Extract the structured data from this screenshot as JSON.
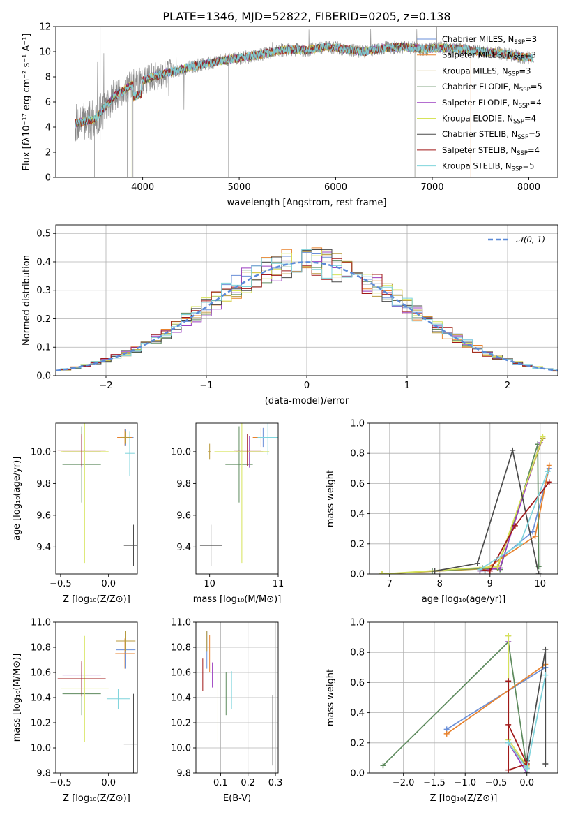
{
  "chart_data": [
    {
      "id": "spectrum",
      "type": "line",
      "title": "PLATE=1346, MJD=52822, FIBERID=0205, z=0.138",
      "xlabel": "wavelength [Angstrom, rest frame]",
      "ylabel": "Flux [fλ10⁻¹⁷ erg cm⁻² s⁻¹ A⁻¹]",
      "xlim": [
        3100,
        8300
      ],
      "ylim": [
        0,
        12
      ],
      "xticks": [
        4000,
        5000,
        6000,
        7000,
        8000
      ],
      "yticks": [
        0,
        2,
        4,
        6,
        8,
        10,
        12
      ],
      "grid": false,
      "legend_position": "top-right",
      "continuum": {
        "x": [
          3300,
          3500,
          3700,
          3900,
          4100,
          4300,
          4500,
          4700,
          4900,
          5100,
          5300,
          5500,
          5700,
          5900,
          6100,
          6300,
          6500,
          6700,
          6900,
          7100,
          7300,
          7500,
          7700,
          7900,
          8050
        ],
        "y": [
          4.3,
          4.6,
          6.4,
          7.4,
          8.0,
          8.4,
          8.8,
          9.1,
          9.4,
          9.6,
          9.9,
          10.2,
          10.1,
          10.4,
          10.2,
          10.0,
          10.3,
          10.4,
          10.2,
          10.3,
          10.2,
          10.0,
          9.9,
          9.6,
          9.5
        ]
      },
      "series": [
        {
          "name": "Chabrier MILES, Nₛₛₚ=3",
          "label_main": "Chabrier MILES, N",
          "label_sub": "SSP",
          "label_tail": "=3",
          "color": "#6a8fd8"
        },
        {
          "name": "Salpeter MILES, Nₛₛₚ=3",
          "label_main": "Salpeter MILES, N",
          "label_sub": "SSP",
          "label_tail": "=3",
          "color": "#e8822d"
        },
        {
          "name": "Kroupa MILES, Nₛₛₚ=3",
          "label_main": "Kroupa MILES, N",
          "label_sub": "SSP",
          "label_tail": "=3",
          "color": "#b89a3c"
        },
        {
          "name": "Chabrier ELODIE, Nₛₛₚ=5",
          "label_main": "Chabrier ELODIE, N",
          "label_sub": "SSP",
          "label_tail": "=5",
          "color": "#5d8a5d"
        },
        {
          "name": "Salpeter ELODIE, Nₛₛₚ=4",
          "label_main": "Salpeter ELODIE, N",
          "label_sub": "SSP",
          "label_tail": "=4",
          "color": "#9b3fc0"
        },
        {
          "name": "Kroupa ELODIE, Nₛₛₚ=4",
          "label_main": "Kroupa ELODIE, N",
          "label_sub": "SSP",
          "label_tail": "=4",
          "color": "#d6e35a"
        },
        {
          "name": "Chabrier STELIB, Nₛₛₚ=5",
          "label_main": "Chabrier STELIB, N",
          "label_sub": "SSP",
          "label_tail": "=5",
          "color": "#4a4a4a"
        },
        {
          "name": "Salpeter STELIB, Nₛₛₚ=4",
          "label_main": "Salpeter STELIB, N",
          "label_sub": "SSP",
          "label_tail": "=4",
          "color": "#a01818"
        },
        {
          "name": "Kroupa STELIB, Nₛₛₚ=5",
          "label_main": "Kroupa STELIB, N",
          "label_sub": "SSP",
          "label_tail": "=5",
          "color": "#7fd4dc"
        }
      ],
      "data_color": "#888888"
    },
    {
      "id": "residuals",
      "type": "area",
      "xlabel": "(data-model)/error",
      "ylabel": "Normed distribution",
      "xlim": [
        -2.5,
        2.5
      ],
      "ylim": [
        0,
        0.53
      ],
      "xticks": [
        -2,
        -1,
        0,
        1,
        2
      ],
      "yticks": [
        0.0,
        0.1,
        0.2,
        0.3,
        0.4,
        0.5
      ],
      "grid": true,
      "legend_position": "top-right",
      "reference_curve": {
        "name": "𝒩(0, 1)",
        "color": "#5b8ad8"
      },
      "bin_width": 0.1
    },
    {
      "id": "age-vs-metallicity",
      "type": "scatter",
      "xlabel": "Z [log₁₀(Z/Z⊙)]",
      "ylabel": "age  [log₁₀(age/yr)]",
      "xlim": [
        -0.55,
        0.3
      ],
      "ylim": [
        9.23,
        10.18
      ],
      "xticks": [
        -0.5,
        0.0
      ],
      "yticks": [
        9.4,
        9.6,
        9.8,
        10.0
      ],
      "grid": false,
      "points": [
        {
          "series": 0,
          "x": 0.18,
          "y": 10.09,
          "xerr": 0.08,
          "yerr": 0.05
        },
        {
          "series": 1,
          "x": 0.17,
          "y": 10.09,
          "xerr": 0.08,
          "yerr": 0.05
        },
        {
          "series": 6,
          "x": 0.26,
          "y": 9.41,
          "xerr": 0.1,
          "yerr": 0.13
        },
        {
          "series": 3,
          "x": -0.28,
          "y": 9.92,
          "xerr": 0.2,
          "yerr": 0.24
        },
        {
          "series": 4,
          "x": -0.28,
          "y": 10.0,
          "xerr": 0.2,
          "yerr": 0.1
        },
        {
          "series": 5,
          "x": -0.25,
          "y": 10.0,
          "xerr": 0.25,
          "yerr": 0.7
        },
        {
          "series": 7,
          "x": -0.28,
          "y": 10.01,
          "xerr": 0.25,
          "yerr": 0.1
        },
        {
          "series": 8,
          "x": 0.22,
          "y": 9.99,
          "xerr": 0.05,
          "yerr": 0.14
        },
        {
          "series": 2,
          "x": 0.18,
          "y": 10.09,
          "xerr": 0.05,
          "yerr": 0.04
        }
      ]
    },
    {
      "id": "age-vs-mass",
      "type": "scatter",
      "xlabel": "mass [log₁₀(M/M⊙)]",
      "ylabel": "",
      "xlim": [
        9.8,
        11.0
      ],
      "ylim": [
        9.23,
        10.18
      ],
      "xticks": [
        10,
        11
      ],
      "yticks": [
        9.4,
        9.6,
        9.8,
        10.0
      ],
      "grid": false,
      "points": [
        {
          "series": 0,
          "x": 10.78,
          "y": 10.09,
          "xerr": 0.12,
          "yerr": 0.06
        },
        {
          "series": 1,
          "x": 10.75,
          "y": 10.09,
          "xerr": 0.12,
          "yerr": 0.06
        },
        {
          "series": 6,
          "x": 10.02,
          "y": 9.41,
          "xerr": 0.16,
          "yerr": 0.13
        },
        {
          "series": 3,
          "x": 10.43,
          "y": 9.92,
          "xerr": 0.2,
          "yerr": 0.24
        },
        {
          "series": 4,
          "x": 10.58,
          "y": 10.0,
          "xerr": 0.2,
          "yerr": 0.1
        },
        {
          "series": 5,
          "x": 10.47,
          "y": 10.0,
          "xerr": 0.4,
          "yerr": 0.7
        },
        {
          "series": 7,
          "x": 10.55,
          "y": 10.01,
          "xerr": 0.2,
          "yerr": 0.1
        },
        {
          "series": 8,
          "x": 10.85,
          "y": 10.09,
          "xerr": 0.15,
          "yerr": 0.11
        },
        {
          "series": 2,
          "x": 10.0,
          "y": 10.0,
          "xerr": 0.02,
          "yerr": 0.05
        }
      ]
    },
    {
      "id": "weight-vs-age",
      "type": "line",
      "xlabel": "age  [log₁₀(age/yr)]",
      "ylabel": "mass weight",
      "xlim": [
        6.6,
        10.35
      ],
      "ylim": [
        0,
        1.0
      ],
      "xticks": [
        7,
        8,
        9,
        10
      ],
      "yticks": [
        0.0,
        0.2,
        0.4,
        0.6,
        0.8,
        1.0
      ],
      "grid": true,
      "series": [
        {
          "series": 0,
          "x": [
            8.9,
            9.85,
            10.18
          ],
          "y": [
            0.02,
            0.28,
            0.7
          ]
        },
        {
          "series": 1,
          "x": [
            8.9,
            9.9,
            10.18
          ],
          "y": [
            0.03,
            0.25,
            0.72
          ]
        },
        {
          "series": 2,
          "x": [
            6.85,
            9.15,
            10.05
          ],
          "y": [
            0.0,
            0.04,
            0.9
          ]
        },
        {
          "series": 3,
          "x": [
            7.85,
            8.85,
            9.2,
            9.95,
            9.97
          ],
          "y": [
            0.02,
            0.04,
            0.03,
            0.86,
            0.05
          ]
        },
        {
          "series": 4,
          "x": [
            8.8,
            9.2,
            10.0
          ],
          "y": [
            0.02,
            0.04,
            0.87
          ]
        },
        {
          "series": 5,
          "x": [
            6.85,
            9.15,
            10.05
          ],
          "y": [
            0.0,
            0.05,
            0.91
          ]
        },
        {
          "series": 6,
          "x": [
            7.9,
            8.75,
            9.45,
            9.97
          ],
          "y": [
            0.02,
            0.07,
            0.82,
            0.0
          ]
        },
        {
          "series": 7,
          "x": [
            8.8,
            9.0,
            9.5,
            10.18
          ],
          "y": [
            0.03,
            0.02,
            0.32,
            0.61
          ]
        },
        {
          "series": 8,
          "x": [
            8.8,
            9.6,
            10.15
          ],
          "y": [
            0.03,
            0.2,
            0.68
          ]
        }
      ]
    },
    {
      "id": "mass-vs-metallicity",
      "type": "scatter",
      "xlabel": "Z [log₁₀(Z/Z⊙)]",
      "ylabel": "mass [log₁₀(M/M⊙)]",
      "xlim": [
        -0.55,
        0.3
      ],
      "ylim": [
        9.8,
        11.0
      ],
      "xticks": [
        -0.5,
        0.0
      ],
      "yticks": [
        9.8,
        10.0,
        10.2,
        10.4,
        10.6,
        10.8,
        11.0
      ],
      "grid": false,
      "points": [
        {
          "series": 0,
          "x": 0.18,
          "y": 10.78,
          "xerr": 0.1,
          "yerr": 0.15
        },
        {
          "series": 1,
          "x": 0.17,
          "y": 10.75,
          "xerr": 0.1,
          "yerr": 0.12
        },
        {
          "series": 6,
          "x": 0.26,
          "y": 10.03,
          "xerr": 0.1,
          "yerr": 0.4
        },
        {
          "series": 3,
          "x": -0.28,
          "y": 10.43,
          "xerr": 0.2,
          "yerr": 0.17
        },
        {
          "series": 4,
          "x": -0.28,
          "y": 10.58,
          "xerr": 0.2,
          "yerr": 0.1
        },
        {
          "series": 5,
          "x": -0.25,
          "y": 10.47,
          "xerr": 0.25,
          "yerr": 0.42
        },
        {
          "series": 7,
          "x": -0.28,
          "y": 10.55,
          "xerr": 0.25,
          "yerr": 0.14
        },
        {
          "series": 8,
          "x": 0.1,
          "y": 10.39,
          "xerr": 0.12,
          "yerr": 0.08
        },
        {
          "series": 2,
          "x": 0.18,
          "y": 10.85,
          "xerr": 0.1,
          "yerr": 0.08
        }
      ]
    },
    {
      "id": "extinction",
      "type": "scatter",
      "xlabel": "E(B-V)",
      "ylabel": "",
      "xlim": [
        0.01,
        0.31
      ],
      "ylim": [
        9.8,
        11.0
      ],
      "xticks": [
        0.1,
        0.2,
        0.3
      ],
      "yticks": [
        9.8,
        10.0,
        10.2,
        10.4,
        10.6,
        10.8,
        11.0
      ],
      "grid": true,
      "points": [
        {
          "series": 0,
          "x": 0.05,
          "y": 10.78,
          "yerr": 0.15
        },
        {
          "series": 1,
          "x": 0.06,
          "y": 10.75,
          "yerr": 0.15
        },
        {
          "series": 6,
          "x": 0.29,
          "y": 10.14,
          "yerr": 0.28
        },
        {
          "series": 3,
          "x": 0.12,
          "y": 10.43,
          "yerr": 0.17
        },
        {
          "series": 4,
          "x": 0.07,
          "y": 10.58,
          "yerr": 0.1
        },
        {
          "series": 5,
          "x": 0.09,
          "y": 10.32,
          "yerr": 0.27
        },
        {
          "series": 7,
          "x": 0.035,
          "y": 10.58,
          "yerr": 0.13
        },
        {
          "series": 8,
          "x": 0.14,
          "y": 10.46,
          "yerr": 0.15
        },
        {
          "series": 2,
          "x": 0.05,
          "y": 10.85,
          "yerr": 0.08
        }
      ]
    },
    {
      "id": "weight-vs-metallicity",
      "type": "line",
      "xlabel": "Z [log₁₀(Z/Z⊙)]",
      "ylabel": "mass weight",
      "xlim": [
        -2.55,
        0.5
      ],
      "ylim": [
        0,
        1.0
      ],
      "xticks": [
        -2.0,
        -1.5,
        -1.0,
        -0.5,
        0.0
      ],
      "yticks": [
        0.0,
        0.2,
        0.4,
        0.6,
        0.8,
        1.0
      ],
      "grid": true,
      "series": [
        {
          "series": 0,
          "x": [
            -1.3,
            0.3
          ],
          "y": [
            0.29,
            0.7
          ]
        },
        {
          "series": 1,
          "x": [
            -1.3,
            0.3
          ],
          "y": [
            0.26,
            0.72
          ]
        },
        {
          "series": 2,
          "x": [
            -0.3,
            -0.3,
            0.0
          ],
          "y": [
            0.91,
            0.2,
            0.04
          ]
        },
        {
          "series": 3,
          "x": [
            -2.33,
            -0.3,
            0.0
          ],
          "y": [
            0.05,
            0.87,
            0.03
          ]
        },
        {
          "series": 4,
          "x": [
            -0.3,
            -0.3,
            0.0
          ],
          "y": [
            0.87,
            0.2,
            0.0
          ]
        },
        {
          "series": 5,
          "x": [
            -0.3,
            -0.3,
            0.0
          ],
          "y": [
            0.91,
            0.22,
            0.05
          ]
        },
        {
          "series": 6,
          "x": [
            0.0,
            0.0,
            0.3,
            0.3
          ],
          "y": [
            0.0,
            0.08,
            0.82,
            0.06
          ]
        },
        {
          "series": 7,
          "x": [
            -0.3,
            -0.3,
            0.0,
            -0.3
          ],
          "y": [
            0.61,
            0.02,
            0.06,
            0.32
          ]
        },
        {
          "series": 8,
          "x": [
            -0.3,
            0.0,
            0.3
          ],
          "y": [
            0.2,
            0.03,
            0.65
          ]
        }
      ]
    }
  ]
}
